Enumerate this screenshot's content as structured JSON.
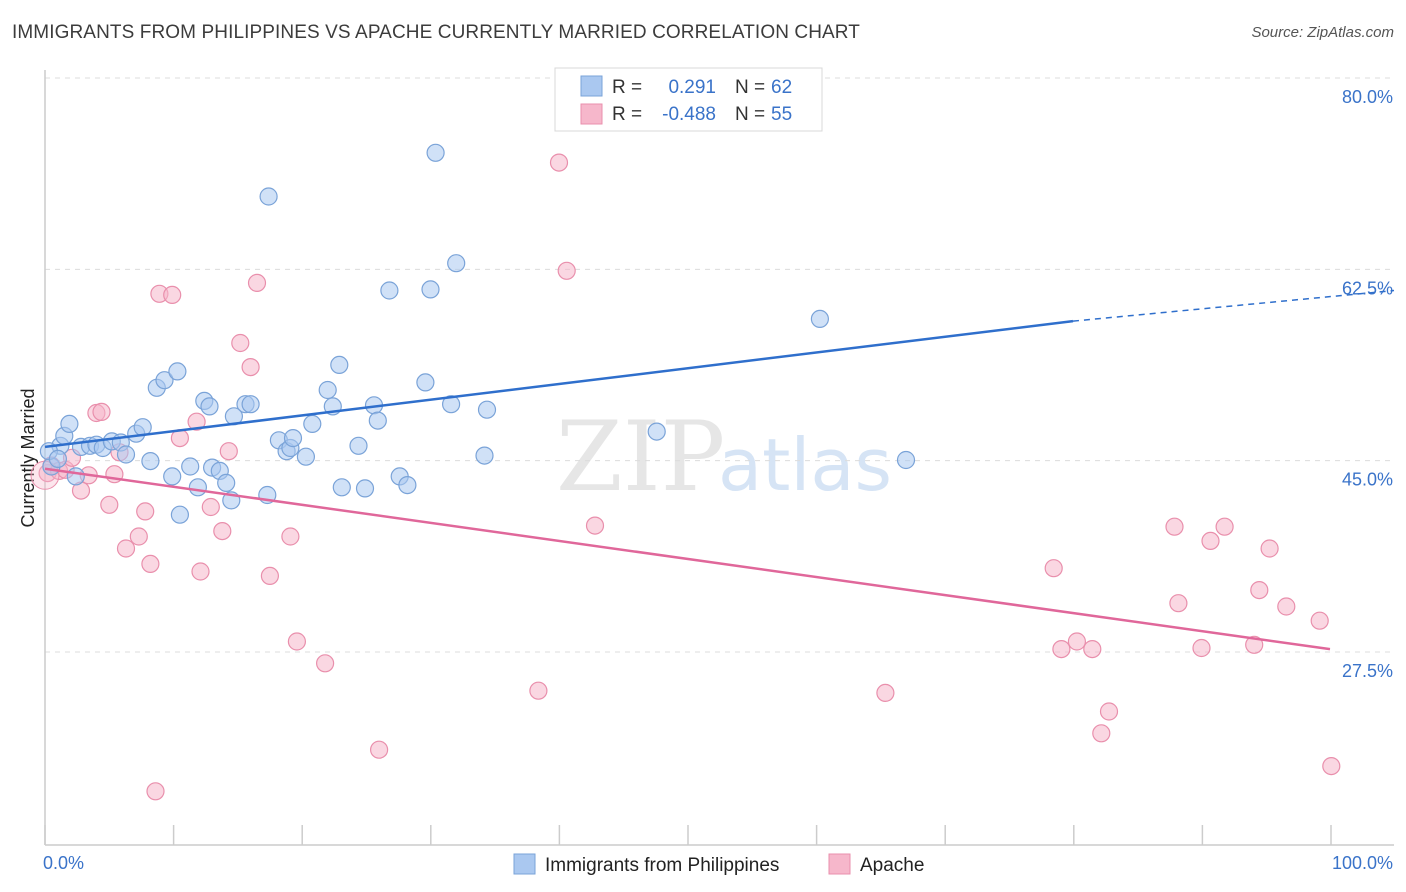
{
  "header": {
    "title": "IMMIGRANTS FROM PHILIPPINES VS APACHE CURRENTLY MARRIED CORRELATION CHART",
    "source": "Source: ZipAtlas.com"
  },
  "watermark": {
    "zip": "ZIP",
    "atlas": "atlas"
  },
  "colors": {
    "blue_fill": "#aac8f0",
    "blue_stroke": "#7aa3d8",
    "blue_line": "#2f6fcc",
    "pink_fill": "#f6b7cb",
    "pink_stroke": "#e98fac",
    "pink_line": "#e0679a",
    "tick_text": "#3a73c9",
    "grid": "#dcdcdc"
  },
  "legend_top": {
    "rows": [
      {
        "r_label": "R =",
        "r_value": "0.291",
        "n_label": "N =",
        "n_value": "62"
      },
      {
        "r_label": "R =",
        "r_value": "-0.488",
        "n_label": "N =",
        "n_value": "55"
      }
    ]
  },
  "legend_bottom": {
    "items": [
      "Immigrants from Philippines",
      "Apache"
    ]
  },
  "chart_data": {
    "type": "scatter",
    "title": "IMMIGRANTS FROM PHILIPPINES VS APACHE CURRENTLY MARRIED CORRELATION CHART",
    "xlabel": "",
    "ylabel": "Currently Married",
    "xlim": [
      0,
      100
    ],
    "ylim": [
      10.5,
      82.5
    ],
    "x_tick_labels": [
      "0.0%",
      "100.0%"
    ],
    "y_ticks": [
      27.5,
      45.0,
      62.5,
      80.0
    ],
    "y_tick_labels": [
      "27.5%",
      "45.0%",
      "62.5%",
      "80.0%"
    ],
    "grid": true,
    "legend_placement": "top-center",
    "series": [
      {
        "name": "Immigrants from Philippines",
        "r": 0.291,
        "n": 62,
        "trend": {
          "x0": 0,
          "y0": 48.0,
          "x1": 80,
          "y1": 59.5,
          "dashed_to_x": 100,
          "dashed_to_y": 62.3
        },
        "points": [
          [
            0.5,
            46.2
          ],
          [
            1.2,
            48.1
          ],
          [
            1.5,
            49.0
          ],
          [
            1.9,
            50.1
          ],
          [
            2.4,
            45.3
          ],
          [
            2.8,
            48.0
          ],
          [
            3.5,
            48.1
          ],
          [
            4.0,
            48.2
          ],
          [
            4.5,
            47.9
          ],
          [
            5.2,
            48.5
          ],
          [
            5.9,
            48.4
          ],
          [
            6.3,
            47.3
          ],
          [
            7.1,
            49.2
          ],
          [
            7.6,
            49.8
          ],
          [
            8.2,
            46.7
          ],
          [
            8.7,
            53.4
          ],
          [
            9.3,
            54.1
          ],
          [
            9.9,
            45.3
          ],
          [
            10.3,
            54.9
          ],
          [
            10.5,
            41.8
          ],
          [
            11.3,
            46.2
          ],
          [
            11.9,
            44.3
          ],
          [
            12.4,
            52.2
          ],
          [
            12.8,
            51.7
          ],
          [
            13.0,
            46.1
          ],
          [
            13.6,
            45.8
          ],
          [
            14.1,
            44.7
          ],
          [
            14.5,
            43.1
          ],
          [
            14.7,
            50.8
          ],
          [
            15.6,
            51.9
          ],
          [
            16.0,
            51.9
          ],
          [
            17.3,
            43.6
          ],
          [
            17.4,
            70.9
          ],
          [
            18.2,
            48.6
          ],
          [
            18.8,
            47.6
          ],
          [
            19.1,
            47.9
          ],
          [
            19.3,
            48.8
          ],
          [
            20.3,
            47.1
          ],
          [
            20.8,
            50.1
          ],
          [
            22.0,
            53.2
          ],
          [
            22.4,
            51.7
          ],
          [
            22.9,
            55.5
          ],
          [
            23.1,
            44.3
          ],
          [
            24.4,
            48.1
          ],
          [
            24.9,
            44.2
          ],
          [
            25.6,
            51.8
          ],
          [
            25.9,
            50.4
          ],
          [
            26.8,
            62.3
          ],
          [
            27.6,
            45.3
          ],
          [
            28.2,
            44.5
          ],
          [
            29.6,
            53.9
          ],
          [
            30.0,
            62.4
          ],
          [
            30.4,
            74.9
          ],
          [
            31.6,
            51.9
          ],
          [
            32.0,
            64.8
          ],
          [
            34.2,
            47.2
          ],
          [
            34.4,
            51.4
          ],
          [
            47.6,
            49.4
          ],
          [
            60.3,
            59.7
          ],
          [
            67.0,
            46.8
          ],
          [
            0.3,
            47.6
          ],
          [
            1.0,
            46.9
          ]
        ]
      },
      {
        "name": "Apache",
        "r": -0.488,
        "n": 55,
        "trend": {
          "x0": 0,
          "y0": 46.0,
          "x1": 100,
          "y1": 29.5
        },
        "points": [
          [
            0.2,
            45.6
          ],
          [
            0.5,
            46.3
          ],
          [
            1.1,
            45.8
          ],
          [
            1.6,
            45.9
          ],
          [
            2.1,
            47.0
          ],
          [
            2.8,
            44.0
          ],
          [
            3.4,
            45.4
          ],
          [
            4.0,
            51.1
          ],
          [
            4.4,
            51.2
          ],
          [
            5.0,
            42.7
          ],
          [
            5.4,
            45.5
          ],
          [
            5.8,
            47.5
          ],
          [
            6.3,
            38.7
          ],
          [
            7.3,
            39.8
          ],
          [
            7.8,
            42.1
          ],
          [
            8.2,
            37.3
          ],
          [
            8.6,
            16.5
          ],
          [
            8.9,
            62.0
          ],
          [
            9.9,
            61.9
          ],
          [
            10.5,
            48.8
          ],
          [
            11.8,
            50.3
          ],
          [
            12.1,
            36.6
          ],
          [
            12.9,
            42.5
          ],
          [
            13.8,
            40.3
          ],
          [
            14.3,
            47.6
          ],
          [
            15.2,
            57.5
          ],
          [
            16.0,
            55.3
          ],
          [
            16.5,
            63.0
          ],
          [
            17.5,
            36.2
          ],
          [
            19.1,
            39.8
          ],
          [
            19.6,
            30.2
          ],
          [
            21.8,
            28.2
          ],
          [
            26.0,
            20.3
          ],
          [
            38.4,
            25.7
          ],
          [
            40.0,
            74.0
          ],
          [
            40.6,
            64.1
          ],
          [
            42.8,
            40.8
          ],
          [
            65.4,
            25.5
          ],
          [
            78.5,
            36.9
          ],
          [
            79.1,
            29.5
          ],
          [
            80.3,
            30.2
          ],
          [
            81.5,
            29.5
          ],
          [
            82.2,
            21.8
          ],
          [
            82.8,
            23.8
          ],
          [
            87.9,
            40.7
          ],
          [
            88.2,
            33.7
          ],
          [
            90.0,
            29.6
          ],
          [
            90.7,
            39.4
          ],
          [
            91.8,
            40.7
          ],
          [
            94.1,
            29.9
          ],
          [
            94.5,
            34.9
          ],
          [
            95.3,
            38.7
          ],
          [
            96.6,
            33.4
          ],
          [
            99.2,
            32.1
          ],
          [
            100.1,
            18.8
          ]
        ]
      }
    ]
  }
}
